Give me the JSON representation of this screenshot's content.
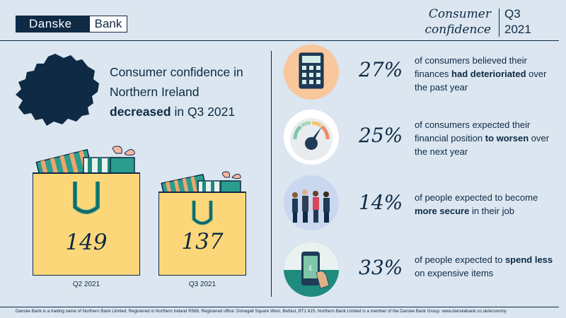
{
  "brand": {
    "left": "Danske",
    "right": "Bank"
  },
  "header": {
    "title_line1": "Consumer",
    "title_line2": "confidence",
    "period_line1": "Q3",
    "period_line2": "2021"
  },
  "headline": {
    "line1": "Consumer confidence in",
    "line2": "Northern Ireland",
    "bold": "decreased",
    "rest": " in Q3 2021"
  },
  "bags": [
    {
      "value": "149",
      "label": "Q2 2021"
    },
    {
      "value": "137",
      "label": "Q3 2021"
    }
  ],
  "stats": [
    {
      "percent": "27%",
      "pre": "of consumers believed their finances ",
      "bold": "had deterioriated",
      "post": " over the past year",
      "icon": "calculator-icon"
    },
    {
      "percent": "25%",
      "pre": "of consumers expected their financial position ",
      "bold": "to worsen",
      "post": " over the next year",
      "icon": "gauge-icon"
    },
    {
      "percent": "14%",
      "pre": "of people expected to become ",
      "bold": "more secure",
      "post": " in their job",
      "icon": "business-people-icon"
    },
    {
      "percent": "33%",
      "pre": "of people expected to ",
      "bold": "spend less",
      "post": " on expensive items",
      "icon": "phone-payment-icon"
    }
  ],
  "footer": "Danske Bank is a trading name of Northern Bank Limited. Registered in Northern Ireland R568. Registered office: Donegall Square West, Belfast, BT1 6JS. Northern Bank Limited is a member of the Danske Bank Group. www.danskebank.co.uk/economy",
  "colors": {
    "navy": "#0e2a45",
    "background": "#dbe6f0",
    "bag_yellow": "#fcd77a",
    "teal": "#1f8a7e",
    "stripe_orange": "#f2a46b"
  }
}
